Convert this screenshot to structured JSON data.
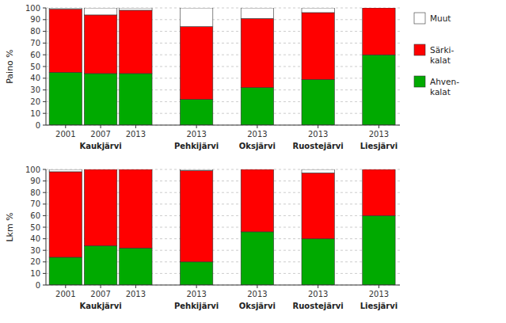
{
  "chart_data": [
    {
      "type": "bar",
      "stacked": true,
      "grid": true,
      "legend": "right",
      "y_label": "Paino %",
      "categories": [
        "2001",
        "2007",
        "2013",
        "2013",
        "2013",
        "2013",
        "2013"
      ],
      "group_labels": [
        "Kaukjärvi",
        "Kaukjärvi",
        "Kaukjärvi",
        "Pehkijärvi",
        "Oksjärvi",
        "Ruostejärvi",
        "Liesjärvi"
      ],
      "series": [
        {
          "name": "Ahven-\nkalat",
          "color": "#00aa00",
          "values": [
            45,
            44,
            44,
            22,
            32,
            39,
            60
          ]
        },
        {
          "name": "Särki-\nkalat",
          "color": "#ff0000",
          "values": [
            54,
            50,
            54,
            62,
            59,
            57,
            40
          ]
        },
        {
          "name": "Muut",
          "color": "#ffffff",
          "values": [
            1,
            6,
            2,
            16,
            9,
            4,
            0
          ]
        }
      ],
      "ylim": [
        0,
        100
      ],
      "yticks": [
        0,
        10,
        20,
        30,
        40,
        50,
        60,
        70,
        80,
        90,
        100
      ]
    },
    {
      "type": "bar",
      "stacked": true,
      "grid": true,
      "y_label": "Lkm %",
      "categories": [
        "2001",
        "2007",
        "2013",
        "2013",
        "2013",
        "2013",
        "2013"
      ],
      "group_labels": [
        "Kaukjärvi",
        "Kaukjärvi",
        "Kaukjärvi",
        "Pehkijärvi",
        "Oksjärvi",
        "Ruostejärvi",
        "Liesjärvi"
      ],
      "series": [
        {
          "name": "Ahven-\nkalat",
          "color": "#00aa00",
          "values": [
            24,
            34,
            32,
            20,
            46,
            40,
            60
          ]
        },
        {
          "name": "Särki-\nkalat",
          "color": "#ff0000",
          "values": [
            74,
            66,
            68,
            79,
            54,
            57,
            40
          ]
        },
        {
          "name": "Muut",
          "color": "#ffffff",
          "values": [
            2,
            0,
            0,
            1,
            0,
            3,
            0
          ]
        }
      ],
      "ylim": [
        0,
        100
      ],
      "yticks": [
        0,
        10,
        20,
        30,
        40,
        50,
        60,
        70,
        80,
        90,
        100
      ]
    }
  ]
}
